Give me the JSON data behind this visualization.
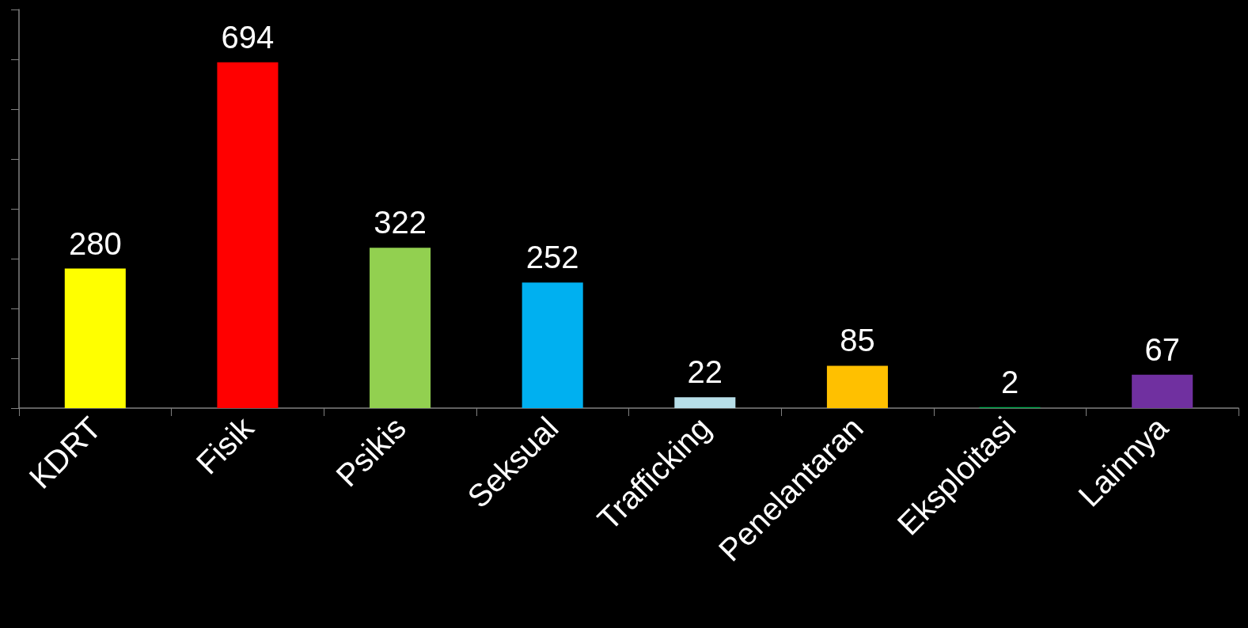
{
  "chart_data": {
    "type": "bar",
    "categories": [
      "KDRT",
      "Fisik",
      "Psikis",
      "Seksual",
      "Trafficking",
      "Penelantaran",
      "Eksploitasi",
      "Lainnya"
    ],
    "values": [
      280,
      694,
      322,
      252,
      22,
      85,
      2,
      67
    ],
    "colors": [
      "#ffff00",
      "#ff0000",
      "#92d050",
      "#00b0f0",
      "#b7dee8",
      "#ffc000",
      "#00b050",
      "#7030a0"
    ],
    "ylim": [
      0,
      800
    ],
    "yticks": [
      {
        "value": 0,
        "label": null
      },
      {
        "value": 100,
        "label": null
      },
      {
        "value": 200,
        "label": null
      },
      {
        "value": 300,
        "label": null
      },
      {
        "value": 400,
        "label": null
      },
      {
        "value": 500,
        "label": null
      },
      {
        "value": 600,
        "label": null
      },
      {
        "value": 700,
        "label": null
      },
      {
        "value": 800,
        "label": null
      }
    ],
    "tick_labels": "x",
    "data_labels": true
  }
}
